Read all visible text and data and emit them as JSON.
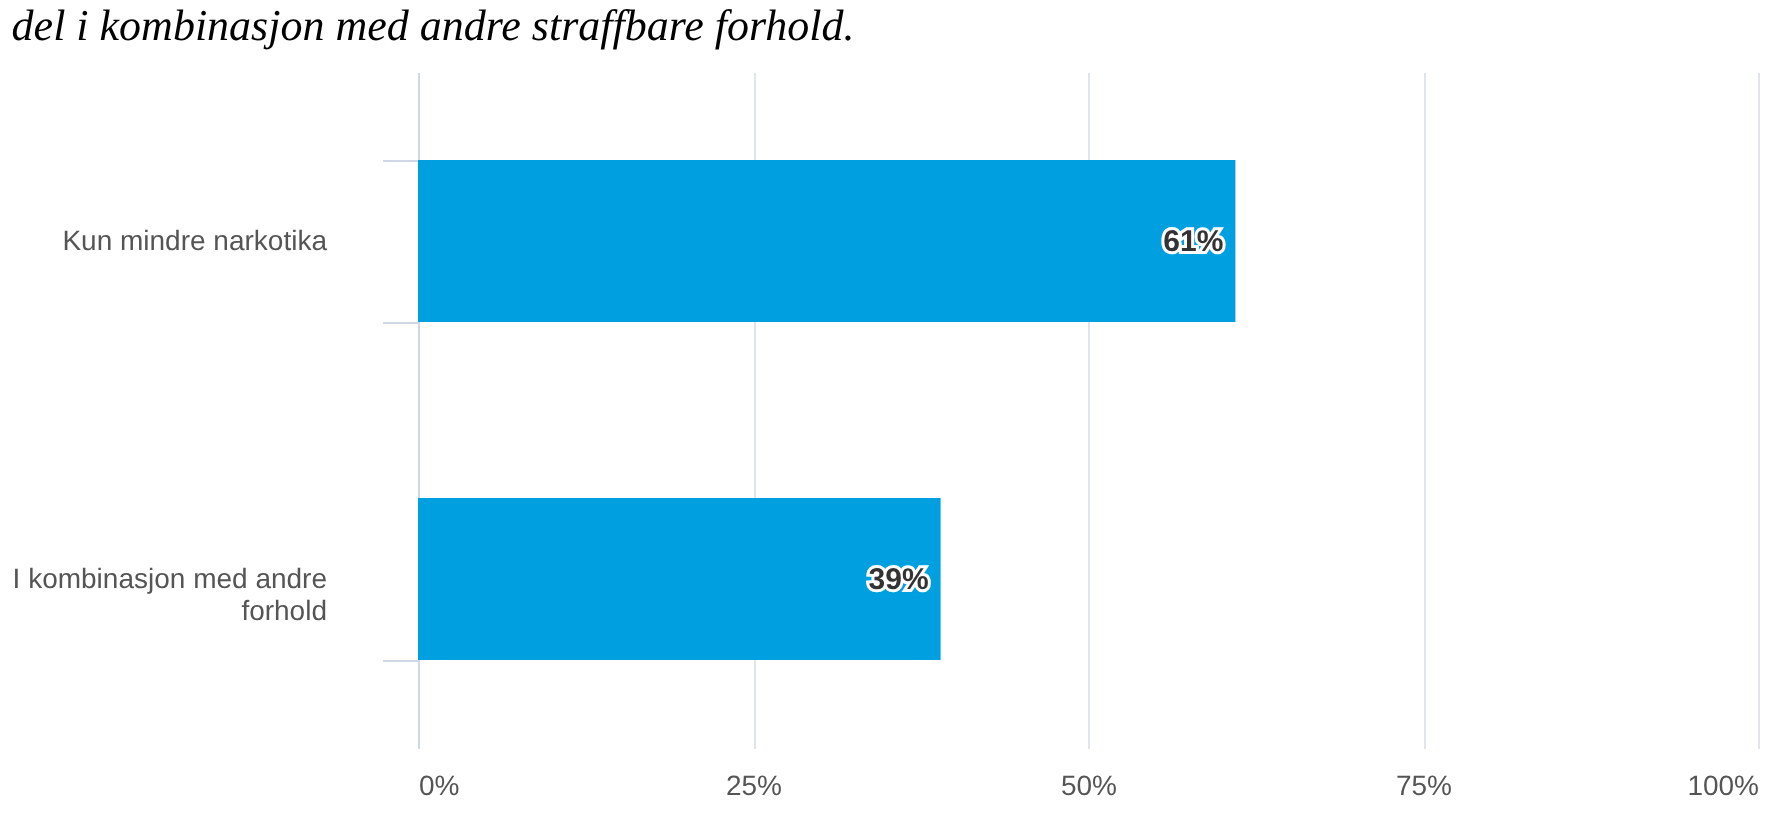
{
  "chart_data": {
    "type": "bar",
    "orientation": "horizontal",
    "title": "del i kombinasjon med andre straffbare forhold.",
    "categories": [
      "Kun mindre narkotika",
      "I kombinasjon med andre forhold"
    ],
    "values": [
      61,
      39
    ],
    "value_labels": [
      "61%",
      "39%"
    ],
    "color": "#009fe0",
    "xlim": [
      0,
      100
    ],
    "xticks": [
      {
        "value": 0,
        "label": "0%"
      },
      {
        "value": 25,
        "label": "25%"
      },
      {
        "value": 50,
        "label": "50%"
      },
      {
        "value": 75,
        "label": "75%"
      },
      {
        "value": 100,
        "label": "100%"
      }
    ],
    "grid": "x"
  }
}
